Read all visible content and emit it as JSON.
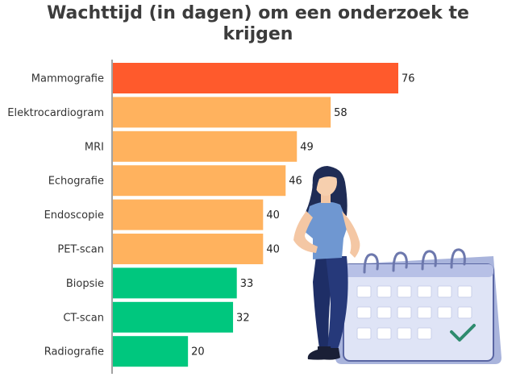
{
  "title_lines": [
    "Wachttijd (in dagen) om een onderzoek te",
    "krijgen"
  ],
  "colors": {
    "highlight": "#ff5a2c",
    "orange": "#ffb25e",
    "green": "#00c77e",
    "axis": "#444444"
  },
  "illustration": {
    "subject": "woman-leaning-on-calendar",
    "icons": [
      "woman-figure",
      "calendar-icon",
      "checkmark-icon"
    ]
  },
  "chart_data": {
    "type": "bar",
    "orientation": "horizontal",
    "title": "Wachttijd (in dagen) om een onderzoek te krijgen",
    "categories": [
      "Mammografie",
      "Elektrocardiogram",
      "MRI",
      "Echografie",
      "Endoscopie",
      "PET-scan",
      "Biopsie",
      "CT-scan",
      "Radiografie"
    ],
    "values": [
      76,
      58,
      49,
      46,
      40,
      40,
      33,
      32,
      20
    ],
    "bar_color_groups": [
      "highlight",
      "orange",
      "orange",
      "orange",
      "orange",
      "orange",
      "green",
      "green",
      "green"
    ],
    "xlim": [
      0,
      76
    ],
    "grid": false,
    "legend": "none"
  }
}
